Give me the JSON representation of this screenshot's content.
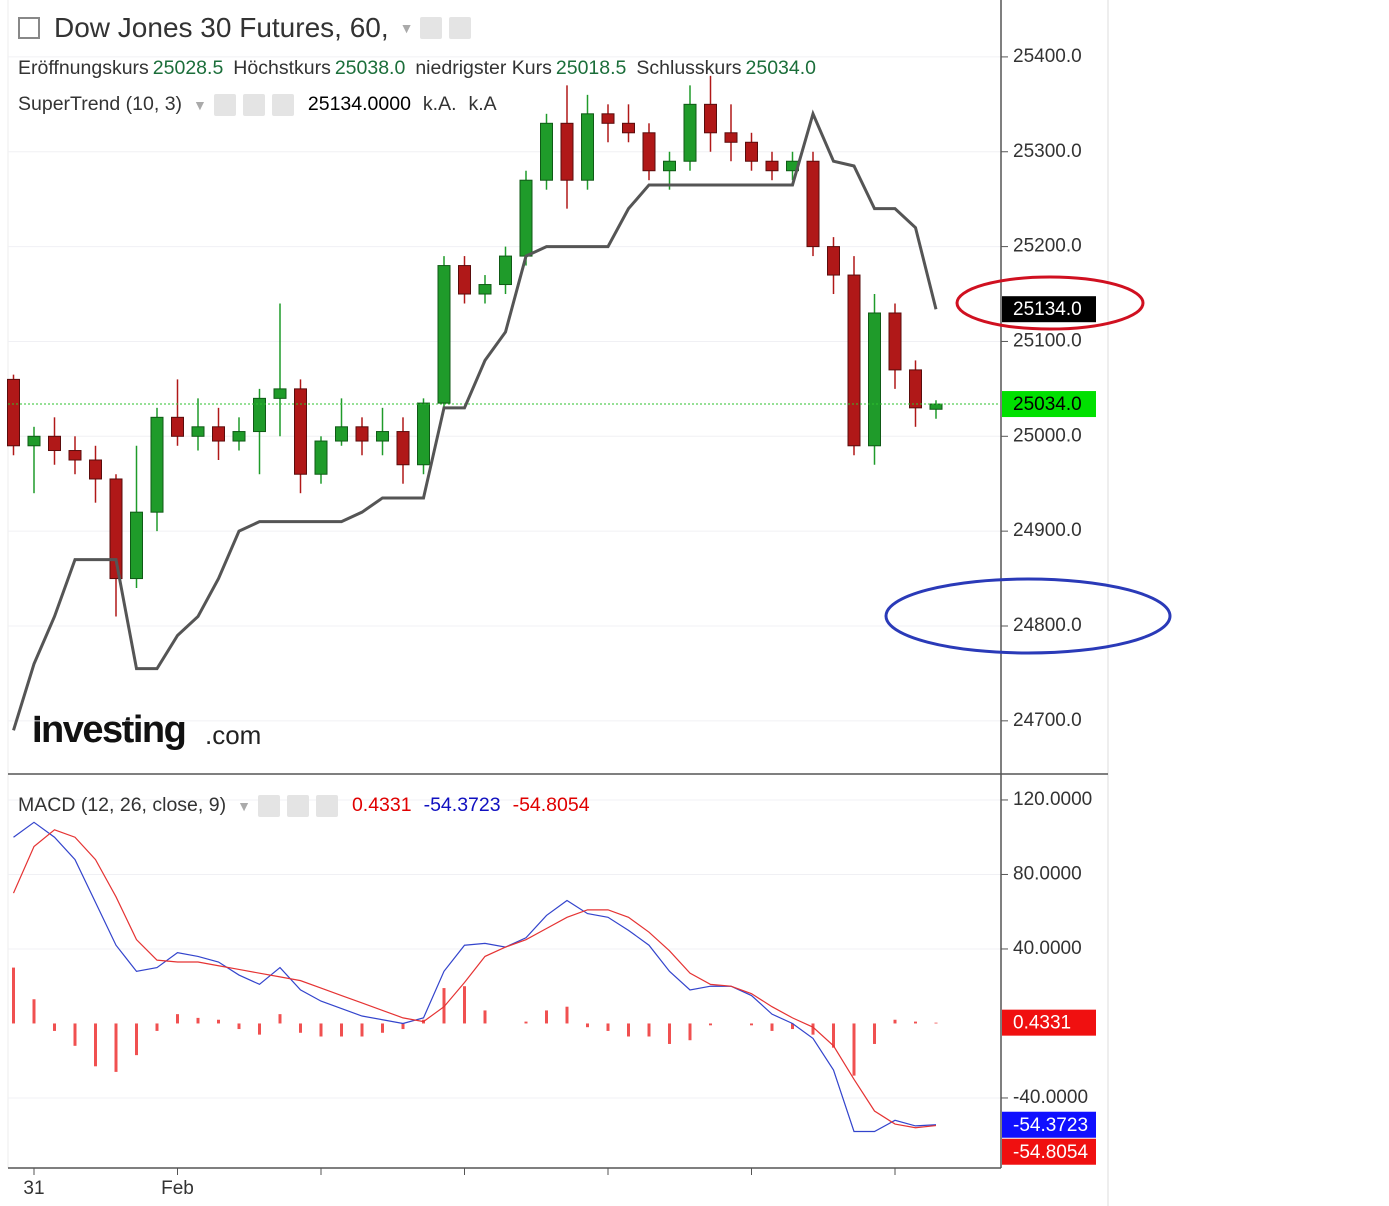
{
  "watermark": {
    "brand": "Investing",
    "suffix": ".com"
  },
  "chart_data": [
    {
      "type": "candlestick",
      "title": "Dow Jones 30 Futures, 60,",
      "ohlc_names": [
        "Eröffnungskurs",
        "Höchstkurs",
        "niedrigster Kurs",
        "Schlusskurs"
      ],
      "ohlc_labels": [
        "25028.5",
        "25038.0",
        "25018.5",
        "25034.0"
      ],
      "categories": [
        null,
        "31",
        null,
        null,
        null,
        null,
        null,
        null,
        "Feb",
        null,
        null,
        null,
        null,
        null,
        null,
        null,
        null,
        null,
        null,
        null,
        null,
        null,
        null,
        null,
        null,
        null,
        null,
        null,
        null,
        null,
        null,
        null,
        null,
        null,
        null,
        null,
        null,
        null,
        null,
        null,
        null,
        null,
        null,
        null,
        null,
        null
      ],
      "open": [
        25060,
        24990,
        25000,
        24985,
        24975,
        24955,
        24850,
        24920,
        25020,
        25000,
        25010,
        24995,
        25005,
        25040,
        25050,
        24960,
        24995,
        25010,
        24995,
        25005,
        24970,
        25035,
        25180,
        25150,
        25160,
        25190,
        25270,
        25330,
        25270,
        25340,
        25330,
        25320,
        25280,
        25290,
        25350,
        25320,
        25310,
        25290,
        25280,
        25290,
        25200,
        25170,
        24990,
        25130,
        25070,
        25028.5
      ],
      "high": [
        25065,
        25010,
        25020,
        25000,
        24990,
        24960,
        24990,
        25030,
        25060,
        25040,
        25030,
        25020,
        25050,
        25140,
        25060,
        25000,
        25040,
        25020,
        25030,
        25020,
        25040,
        25190,
        25190,
        25170,
        25200,
        25280,
        25340,
        25370,
        25360,
        25350,
        25350,
        25330,
        25300,
        25370,
        25380,
        25350,
        25320,
        25300,
        25300,
        25300,
        25210,
        25190,
        25150,
        25140,
        25080,
        25038
      ],
      "low": [
        24980,
        24940,
        24970,
        24960,
        24930,
        24810,
        24840,
        24900,
        24990,
        24985,
        24975,
        24985,
        24960,
        25000,
        24940,
        24950,
        24990,
        24980,
        24980,
        24950,
        24960,
        25030,
        25140,
        25140,
        25150,
        25180,
        25260,
        25240,
        25260,
        25310,
        25310,
        25270,
        25260,
        25280,
        25300,
        25290,
        25280,
        25270,
        25270,
        25190,
        25150,
        24980,
        24970,
        25050,
        25010,
        25018.5
      ],
      "close": [
        24990,
        25000,
        24985,
        24975,
        24955,
        24850,
        24920,
        25020,
        25000,
        25010,
        24995,
        25005,
        25040,
        25050,
        24960,
        24995,
        25010,
        24995,
        25005,
        24970,
        25035,
        25180,
        25150,
        25160,
        25190,
        25270,
        25330,
        25270,
        25340,
        25330,
        25320,
        25280,
        25290,
        25350,
        25320,
        25310,
        25290,
        25280,
        25290,
        25200,
        25170,
        24990,
        25130,
        25070,
        25030,
        25034
      ],
      "close_label": "25034.0",
      "series": [
        {
          "name": "SuperTrend (10, 3)",
          "color": "#555555",
          "values": [
            24690,
            24760,
            24810,
            24870,
            24870,
            24870,
            24755,
            24755,
            24790,
            24810,
            24850,
            24900,
            24910,
            24910,
            24910,
            24910,
            24910,
            24920,
            24935,
            24935,
            24935,
            25030,
            25030,
            25080,
            25110,
            25190,
            25200,
            25200,
            25200,
            25200,
            25240,
            25265,
            25265,
            25265,
            25265,
            25265,
            25265,
            25265,
            25265,
            25340,
            25290,
            25285,
            25240,
            25240,
            25220,
            25134
          ],
          "legend_labels": [
            "25134.0000",
            "k.A.",
            "k.A"
          ],
          "last_label": "25134.0"
        }
      ],
      "ylim": [
        24645,
        25460
      ],
      "yticks": [
        {
          "value": 24700,
          "label": "24700.0"
        },
        {
          "value": 24800,
          "label": "24800.0"
        },
        {
          "value": 24900,
          "label": "24900.0"
        },
        {
          "value": 25000,
          "label": "25000.0"
        },
        {
          "value": 25100,
          "label": "25100.0"
        },
        {
          "value": 25200,
          "label": "25200.0"
        },
        {
          "value": 25300,
          "label": "25300.0"
        },
        {
          "value": 25400,
          "label": "25400.0"
        }
      ],
      "up_color": "#1f9b2a",
      "down_color": "#b01818"
    },
    {
      "type": "macd",
      "title": "MACD (12, 26, close, 9)",
      "series": [
        {
          "color": "#f05050",
          "kind": "histogram",
          "values": [
            30,
            13,
            -4,
            -12,
            -23,
            -26,
            -17,
            -4,
            5,
            3,
            2,
            -3,
            -6,
            5,
            -5,
            -7,
            -7,
            -7,
            -5,
            -3,
            2,
            19,
            20,
            7,
            0,
            1,
            7,
            9,
            -2,
            -4,
            -7,
            -7,
            -11,
            -9,
            -1,
            0,
            -1,
            -4,
            -3,
            -6,
            -13,
            -28,
            -11,
            2,
            1,
            0.4331
          ],
          "last_label": "0.4331"
        },
        {
          "color": "#3344cc",
          "kind": "line",
          "values": [
            100,
            108,
            100,
            88,
            65,
            42,
            28,
            30,
            38,
            36,
            33,
            26,
            21,
            30,
            18,
            12,
            8,
            4,
            2,
            0,
            3,
            28,
            42,
            43,
            41,
            46,
            58,
            66,
            59,
            57,
            50,
            42,
            28,
            18,
            20,
            20,
            15,
            5,
            0,
            -8,
            -25,
            -58,
            -58,
            -52,
            -55,
            -54.3723
          ],
          "last_label": "-54.3723"
        },
        {
          "color": "#e53333",
          "kind": "line",
          "values": [
            70,
            95,
            104,
            100,
            88,
            68,
            45,
            34,
            33,
            33,
            31,
            29,
            27,
            25,
            23,
            19,
            15,
            11,
            7,
            3,
            1,
            9,
            22,
            36,
            41,
            45,
            51,
            57,
            61,
            61,
            57,
            49,
            39,
            27,
            21,
            20,
            16,
            9,
            3,
            -2,
            -12,
            -30,
            -47,
            -54,
            -56,
            -54.8054
          ],
          "last_label": "-54.8054"
        }
      ],
      "ylim": [
        -77.6,
        133.4
      ],
      "yticks": [
        {
          "value": -40,
          "label": "-40.0000"
        },
        {
          "value": 40,
          "label": "40.0000"
        },
        {
          "value": 80,
          "label": "80.0000"
        },
        {
          "value": 120,
          "label": "120.0000"
        }
      ]
    }
  ]
}
